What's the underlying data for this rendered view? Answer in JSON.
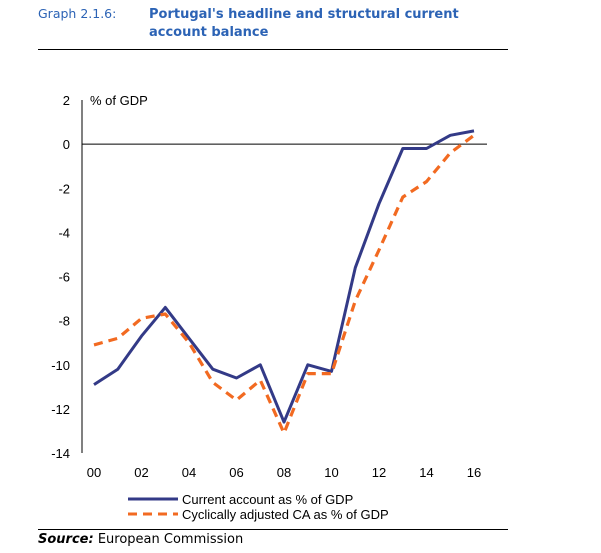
{
  "header": {
    "graph_label": "Graph 2.1.6:",
    "title": "Portugal's headline and structural current account balance"
  },
  "source": {
    "label": "Source:",
    "text": "European Commission"
  },
  "colors": {
    "title": "#2c63b5",
    "current_account": "#333a87",
    "cyclically_adjusted": "#f26a21"
  },
  "chart_data": {
    "type": "line",
    "title": "Portugal's headline and structural current account balance",
    "ylabel": "% of GDP",
    "xlabel": "",
    "x": [
      2000,
      2001,
      2002,
      2003,
      2004,
      2005,
      2006,
      2007,
      2008,
      2009,
      2010,
      2011,
      2012,
      2013,
      2014,
      2015,
      2016
    ],
    "ylim": [
      -14,
      2
    ],
    "xlim": [
      2000,
      2016
    ],
    "y_ticks": [
      2,
      0,
      -2,
      -4,
      -6,
      -8,
      -10,
      -12,
      -14
    ],
    "x_ticks": [
      2000,
      2002,
      2004,
      2006,
      2008,
      2010,
      2012,
      2014,
      2016
    ],
    "x_tick_labels": [
      "00",
      "02",
      "04",
      "06",
      "08",
      "10",
      "12",
      "14",
      "16"
    ],
    "grid": false,
    "legend_position": "bottom-center",
    "series": [
      {
        "name": "Current account as % of GDP",
        "style": "solid",
        "color": "#333a87",
        "values": [
          -10.9,
          -10.2,
          -8.7,
          -7.4,
          -8.8,
          -10.2,
          -10.6,
          -10.0,
          -12.6,
          -10.0,
          -10.3,
          -5.6,
          -2.7,
          -0.2,
          -0.2,
          0.4,
          0.6
        ]
      },
      {
        "name": "Cyclically adjusted CA as % of GDP",
        "style": "dashed",
        "color": "#f26a21",
        "values": [
          -9.1,
          -8.8,
          -7.9,
          -7.7,
          -9.0,
          -10.8,
          -11.6,
          -10.7,
          -13.1,
          -10.4,
          -10.4,
          -7.1,
          -4.8,
          -2.4,
          -1.7,
          -0.4,
          0.4
        ]
      }
    ]
  }
}
